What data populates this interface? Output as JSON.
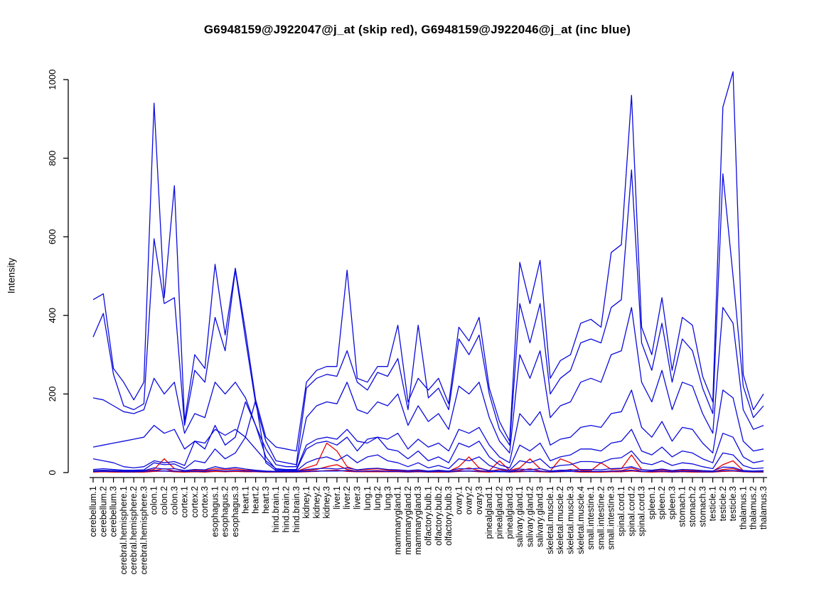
{
  "page": {
    "background": "#ffffff"
  },
  "chart_data": {
    "type": "line",
    "title": "G6948159@J922047@j_at (skip red), G6948159@J922046@j_at (inc blue)",
    "ylabel": "Intensity",
    "ylim": [
      0,
      1000
    ],
    "yticks": [
      0,
      200,
      400,
      600,
      800,
      1000
    ],
    "grid": false,
    "legend_note": "skip probeset G6948159@J922047@j_at drawn in red, inc probeset G6948159@J922046@j_at drawn in blue",
    "palette": {
      "skip": "#E60000",
      "inc": "#0B0BDC"
    },
    "categories": [
      "cerebellum.1",
      "cerebellum.2",
      "cerebellum.3",
      "cerebral.hemisphere.1",
      "cerebral.hemisphere.2",
      "cerebral.hemisphere.3",
      "colon.1",
      "colon.2",
      "colon.3",
      "cortex.1",
      "cortex.2",
      "cortex.3",
      "esophagus.1",
      "esophagus.2",
      "esophagus.3",
      "heart.1",
      "heart.2",
      "heart.3",
      "hind.brain.1",
      "hind.brain.2",
      "hind.brain.3",
      "kidney.1",
      "kidney.2",
      "kidney.3",
      "liver.1",
      "liver.2",
      "liver.3",
      "lung.1",
      "lung.2",
      "lung.3",
      "mammarygland.1",
      "mammarygland.2",
      "mammarygland.3",
      "olfactory.bulb.1",
      "olfactory.bulb.2",
      "olfactory.bulb.3",
      "ovary.1",
      "ovary.2",
      "ovary.3",
      "pinealgland.1",
      "pinealgland.2",
      "pinealgland.3",
      "salivary.gland.1",
      "salivary.gland.2",
      "salivary.gland.3",
      "skeletal.muscle.1",
      "skeletal.muscle.2",
      "skeletal.muscle.3",
      "skeletal.muscle.4",
      "small.intestine.1",
      "small.intestine.2",
      "small.intestine.3",
      "spinal.cord.1",
      "spinal.cord.2",
      "spinal.cord.3",
      "spleen.1",
      "spleen.2",
      "spleen.3",
      "stomach.1",
      "stomach.2",
      "stomach.3",
      "testicle.1",
      "testicle.2",
      "testicle.3",
      "thalamus.1",
      "thalamus.2",
      "thalamus.3"
    ],
    "series": [
      {
        "name": "skip.probe.1",
        "group": "skip",
        "values": [
          4,
          5,
          4,
          3,
          3,
          4,
          8,
          35,
          10,
          4,
          6,
          5,
          10,
          8,
          9,
          6,
          5,
          3,
          3,
          3,
          3,
          12,
          20,
          75,
          55,
          15,
          6,
          8,
          10,
          6,
          5,
          4,
          5,
          3,
          4,
          3,
          15,
          40,
          12,
          5,
          30,
          6,
          12,
          35,
          10,
          4,
          35,
          25,
          6,
          5,
          25,
          8,
          10,
          45,
          8,
          5,
          7,
          4,
          6,
          5,
          4,
          3,
          20,
          30,
          5,
          3,
          4
        ]
      },
      {
        "name": "skip.probe.2",
        "group": "skip",
        "values": [
          2,
          3,
          2,
          2,
          2,
          2,
          5,
          10,
          4,
          2,
          3,
          2,
          6,
          4,
          5,
          3,
          3,
          2,
          2,
          2,
          2,
          5,
          8,
          15,
          20,
          8,
          3,
          4,
          5,
          3,
          3,
          2,
          3,
          2,
          2,
          2,
          6,
          12,
          5,
          3,
          8,
          3,
          5,
          10,
          4,
          2,
          4,
          8,
          3,
          3,
          2,
          4,
          5,
          12,
          3,
          2,
          3,
          2,
          3,
          2,
          2,
          2,
          8,
          10,
          3,
          2,
          2
        ]
      },
      {
        "name": "skip.probe.3",
        "group": "skip",
        "values": [
          1,
          2,
          1,
          1,
          1,
          1,
          3,
          4,
          2,
          1,
          2,
          1,
          3,
          2,
          3,
          2,
          2,
          1,
          1,
          1,
          1,
          2,
          3,
          5,
          6,
          3,
          2,
          2,
          2,
          2,
          2,
          1,
          2,
          1,
          1,
          1,
          3,
          4,
          2,
          1,
          3,
          1,
          2,
          3,
          2,
          1,
          2,
          3,
          1,
          1,
          1,
          2,
          2,
          4,
          2,
          1,
          2,
          1,
          2,
          1,
          1,
          1,
          3,
          4,
          2,
          1,
          1
        ]
      },
      {
        "name": "inc.probe.8",
        "group": "inc",
        "values": [
          3,
          3,
          3,
          2,
          2,
          3,
          5,
          4,
          4,
          3,
          3,
          3,
          6,
          4,
          5,
          4,
          3,
          2,
          2,
          2,
          2,
          3,
          4,
          4,
          4,
          5,
          3,
          4,
          4,
          3,
          3,
          2,
          3,
          2,
          3,
          2,
          4,
          4,
          4,
          3,
          2,
          2,
          4,
          3,
          4,
          2,
          3,
          3,
          3,
          3,
          3,
          4,
          4,
          6,
          3,
          3,
          4,
          2,
          3,
          3,
          2,
          2,
          5,
          5,
          3,
          2,
          2
        ]
      },
      {
        "name": "inc.probe.7",
        "group": "inc",
        "values": [
          5,
          6,
          5,
          4,
          4,
          5,
          12,
          9,
          10,
          5,
          8,
          7,
          15,
          10,
          13,
          9,
          6,
          4,
          3,
          3,
          3,
          8,
          10,
          11,
          9,
          12,
          7,
          10,
          11,
          8,
          7,
          5,
          7,
          4,
          6,
          4,
          10,
          9,
          11,
          5,
          4,
          3,
          9,
          7,
          10,
          4,
          6,
          6,
          8,
          8,
          7,
          10,
          11,
          15,
          7,
          6,
          9,
          5,
          8,
          7,
          5,
          4,
          14,
          13,
          5,
          4,
          5
        ]
      },
      {
        "name": "inc.probe.6",
        "group": "inc",
        "values": [
          8,
          10,
          8,
          6,
          6,
          7,
          25,
          20,
          22,
          10,
          30,
          25,
          60,
          35,
          50,
          90,
          185,
          25,
          5,
          4,
          4,
          25,
          35,
          40,
          30,
          45,
          25,
          40,
          45,
          30,
          25,
          15,
          25,
          12,
          18,
          10,
          35,
          30,
          40,
          18,
          10,
          6,
          30,
          25,
          35,
          12,
          18,
          20,
          28,
          28,
          25,
          35,
          38,
          55,
          25,
          20,
          30,
          18,
          25,
          22,
          15,
          10,
          50,
          45,
          18,
          10,
          12
        ]
      },
      {
        "name": "inc.probe.5",
        "group": "inc",
        "values": [
          35,
          30,
          25,
          15,
          12,
          15,
          30,
          25,
          28,
          18,
          80,
          60,
          120,
          70,
          90,
          180,
          120,
          40,
          8,
          6,
          6,
          60,
          75,
          80,
          70,
          90,
          55,
          85,
          90,
          60,
          55,
          35,
          55,
          30,
          40,
          25,
          75,
          65,
          80,
          40,
          20,
          12,
          70,
          55,
          75,
          30,
          40,
          45,
          60,
          60,
          55,
          75,
          80,
          110,
          55,
          45,
          65,
          40,
          55,
          50,
          35,
          25,
          100,
          90,
          40,
          25,
          30
        ]
      },
      {
        "name": "inc.probe.4",
        "group": "inc",
        "values": [
          65,
          70,
          75,
          80,
          85,
          90,
          120,
          100,
          110,
          60,
          80,
          75,
          110,
          95,
          110,
          90,
          60,
          30,
          10,
          8,
          8,
          70,
          85,
          90,
          85,
          110,
          80,
          75,
          90,
          85,
          100,
          60,
          85,
          65,
          75,
          55,
          110,
          100,
          115,
          70,
          40,
          25,
          150,
          120,
          155,
          70,
          85,
          90,
          115,
          120,
          115,
          150,
          155,
          210,
          115,
          90,
          130,
          80,
          115,
          110,
          75,
          50,
          210,
          190,
          80,
          55,
          60
        ]
      },
      {
        "name": "inc.probe.3",
        "group": "inc",
        "values": [
          190,
          185,
          170,
          155,
          150,
          160,
          240,
          200,
          230,
          100,
          150,
          140,
          230,
          200,
          230,
          190,
          120,
          60,
          20,
          15,
          15,
          140,
          170,
          180,
          175,
          230,
          160,
          150,
          180,
          170,
          200,
          120,
          170,
          130,
          150,
          110,
          220,
          200,
          230,
          140,
          80,
          50,
          300,
          240,
          310,
          140,
          170,
          180,
          230,
          240,
          230,
          300,
          310,
          420,
          230,
          180,
          260,
          160,
          230,
          220,
          150,
          100,
          420,
          380,
          160,
          110,
          120
        ]
      },
      {
        "name": "inc.probe.2",
        "group": "inc",
        "values": [
          345,
          405,
          250,
          170,
          160,
          175,
          595,
          430,
          445,
          120,
          260,
          230,
          395,
          310,
          515,
          340,
          175,
          80,
          30,
          25,
          20,
          215,
          240,
          250,
          245,
          310,
          230,
          210,
          255,
          245,
          290,
          160,
          375,
          190,
          215,
          160,
          340,
          300,
          350,
          200,
          110,
          70,
          430,
          330,
          430,
          200,
          240,
          260,
          330,
          340,
          330,
          420,
          440,
          770,
          330,
          260,
          380,
          230,
          340,
          310,
          215,
          150,
          760,
          500,
          220,
          140,
          170
        ]
      },
      {
        "name": "inc.probe.1",
        "group": "inc",
        "values": [
          440,
          455,
          265,
          230,
          185,
          230,
          940,
          445,
          730,
          130,
          300,
          265,
          530,
          350,
          520,
          360,
          185,
          90,
          65,
          60,
          55,
          230,
          260,
          270,
          270,
          515,
          240,
          230,
          270,
          270,
          375,
          180,
          240,
          210,
          240,
          175,
          370,
          335,
          395,
          215,
          130,
          80,
          535,
          430,
          540,
          240,
          285,
          300,
          380,
          390,
          370,
          560,
          580,
          960,
          370,
          300,
          445,
          260,
          395,
          375,
          245,
          180,
          930,
          1020,
          250,
          160,
          200
        ]
      }
    ]
  }
}
